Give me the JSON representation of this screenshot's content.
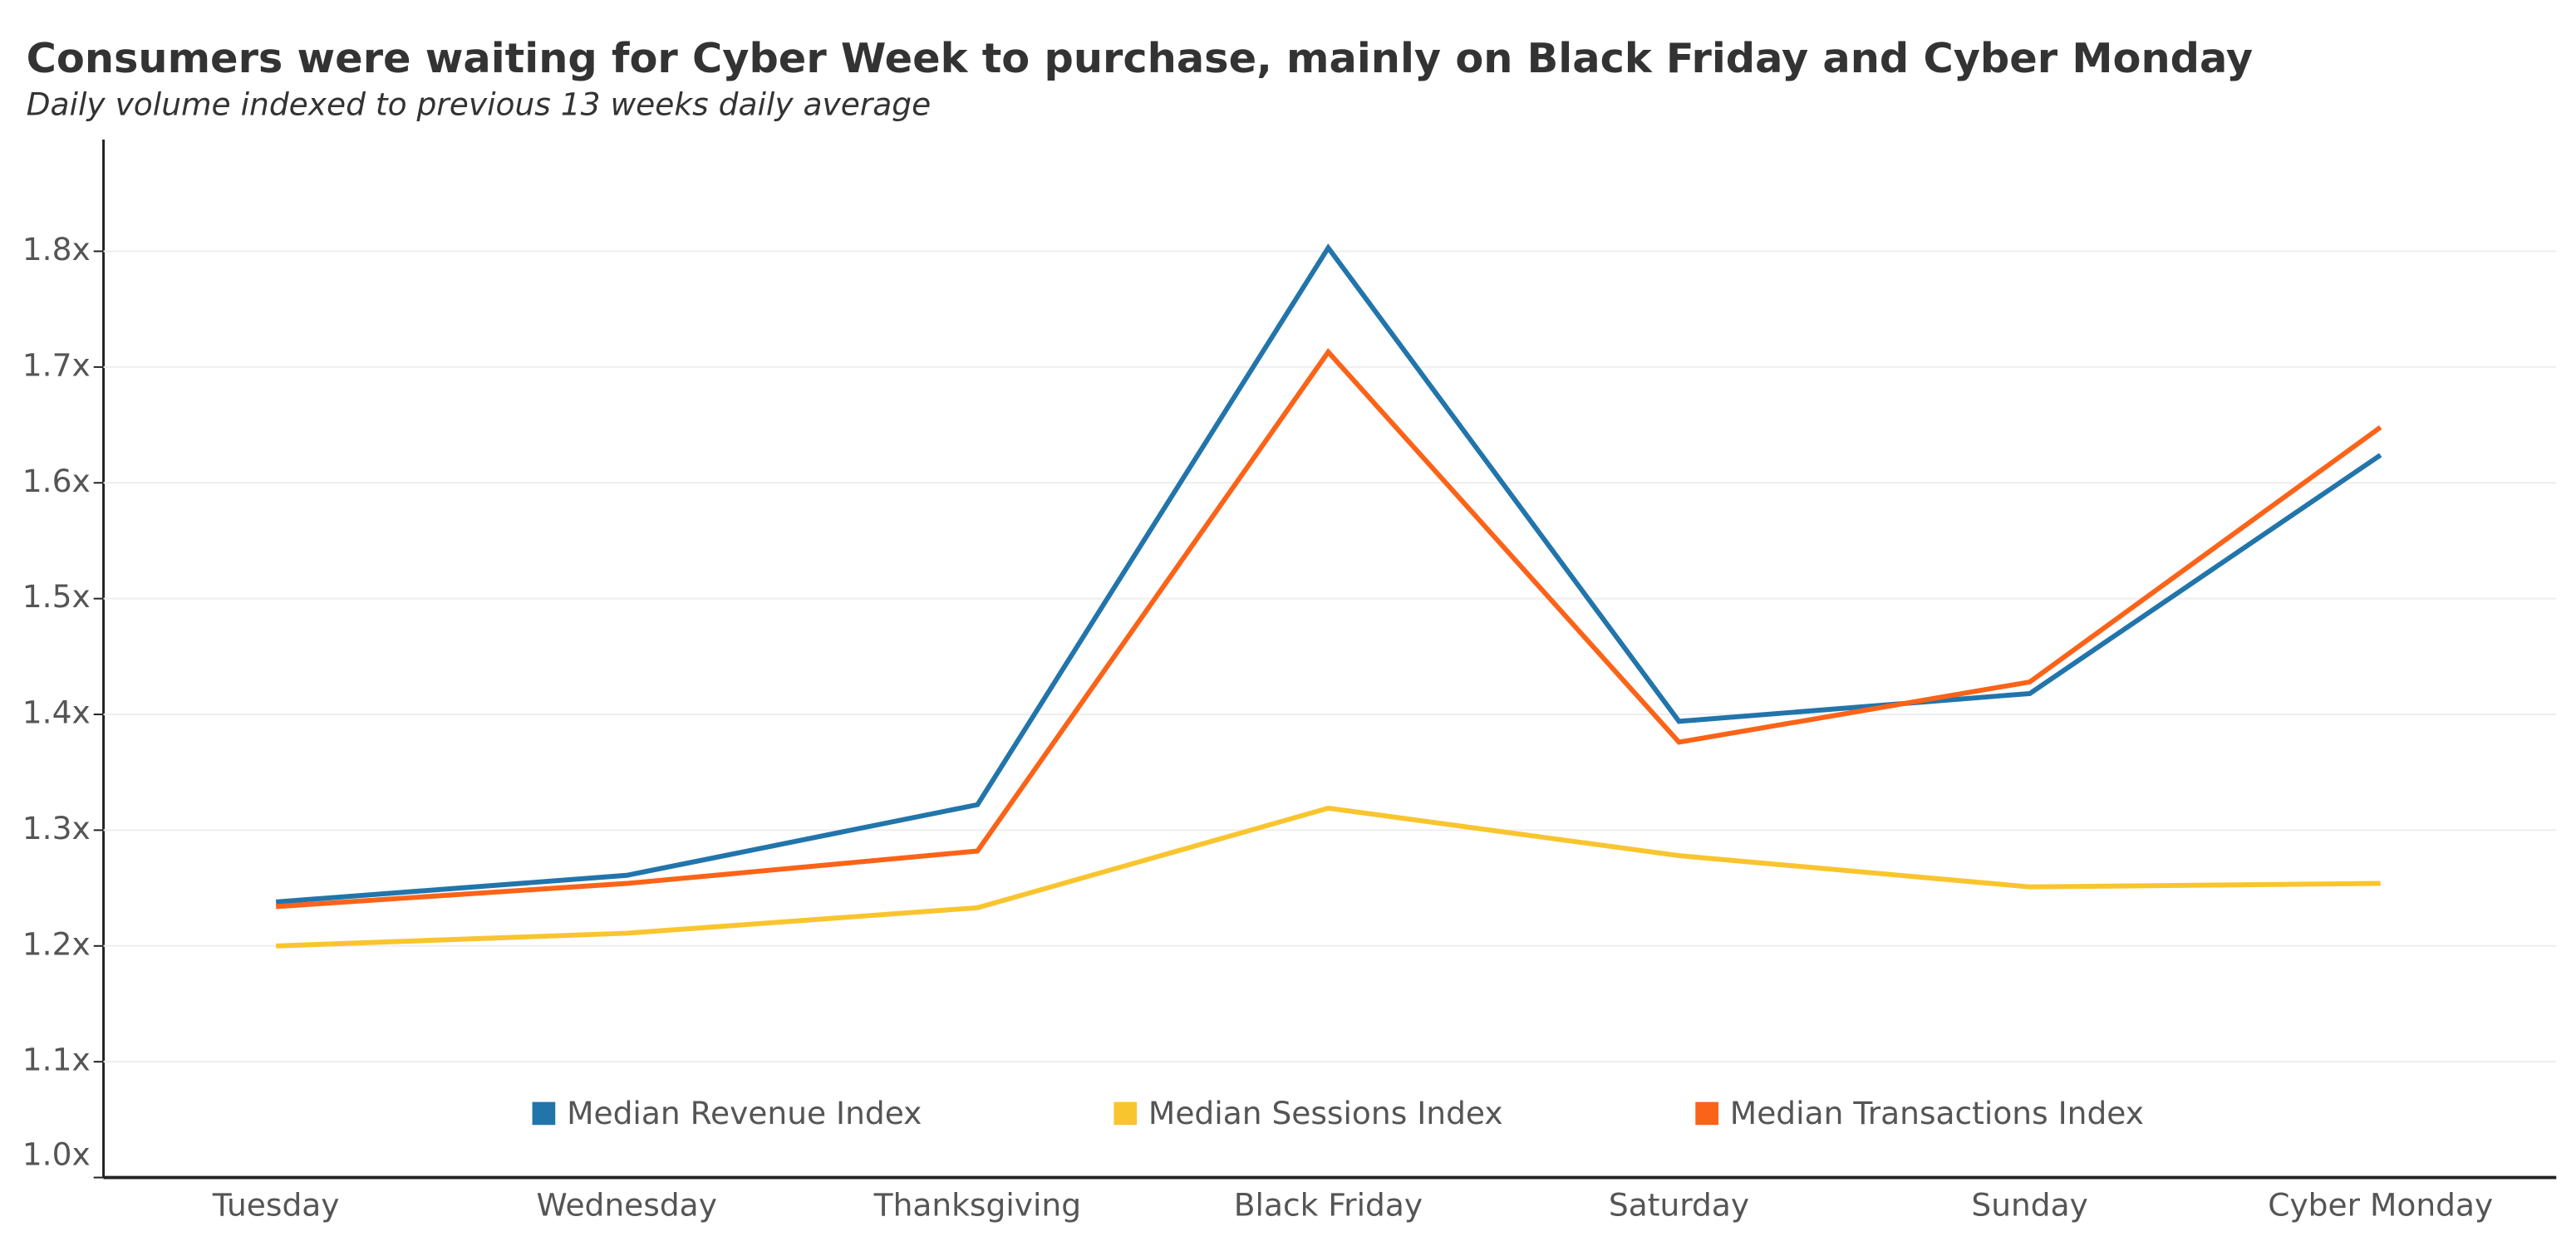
{
  "chart_data": {
    "type": "line",
    "title": "Consumers were waiting for Cyber Week to purchase, mainly on Black Friday and Cyber Monday",
    "subtitle": "Daily volume indexed to previous 13 weeks daily average",
    "categories": [
      "Tuesday",
      "Wednesday",
      "Thanksgiving",
      "Black Friday",
      "Saturday",
      "Sunday",
      "Cyber Monday"
    ],
    "series": [
      {
        "name": "Median Revenue Index",
        "color": "#2275ab",
        "values": [
          1.238,
          1.261,
          1.322,
          1.803,
          1.394,
          1.418,
          1.624
        ]
      },
      {
        "name": "Median Sessions Index",
        "color": "#f9c52e",
        "values": [
          1.2,
          1.211,
          1.233,
          1.319,
          1.278,
          1.251,
          1.254
        ]
      },
      {
        "name": "Median Transactions Index",
        "color": "#fb6318",
        "values": [
          1.234,
          1.254,
          1.282,
          1.713,
          1.376,
          1.428,
          1.648
        ]
      }
    ],
    "ylim": [
      1.0,
      1.9
    ],
    "yticks": [
      {
        "value": 1.0,
        "label": "1.0x"
      },
      {
        "value": 1.1,
        "label": "1.1x"
      },
      {
        "value": 1.2,
        "label": "1.2x"
      },
      {
        "value": 1.3,
        "label": "1.3x"
      },
      {
        "value": 1.4,
        "label": "1.4x"
      },
      {
        "value": 1.5,
        "label": "1.5x"
      },
      {
        "value": 1.6,
        "label": "1.6x"
      },
      {
        "value": 1.7,
        "label": "1.7x"
      },
      {
        "value": 1.8,
        "label": "1.8x"
      }
    ],
    "grid": true
  }
}
